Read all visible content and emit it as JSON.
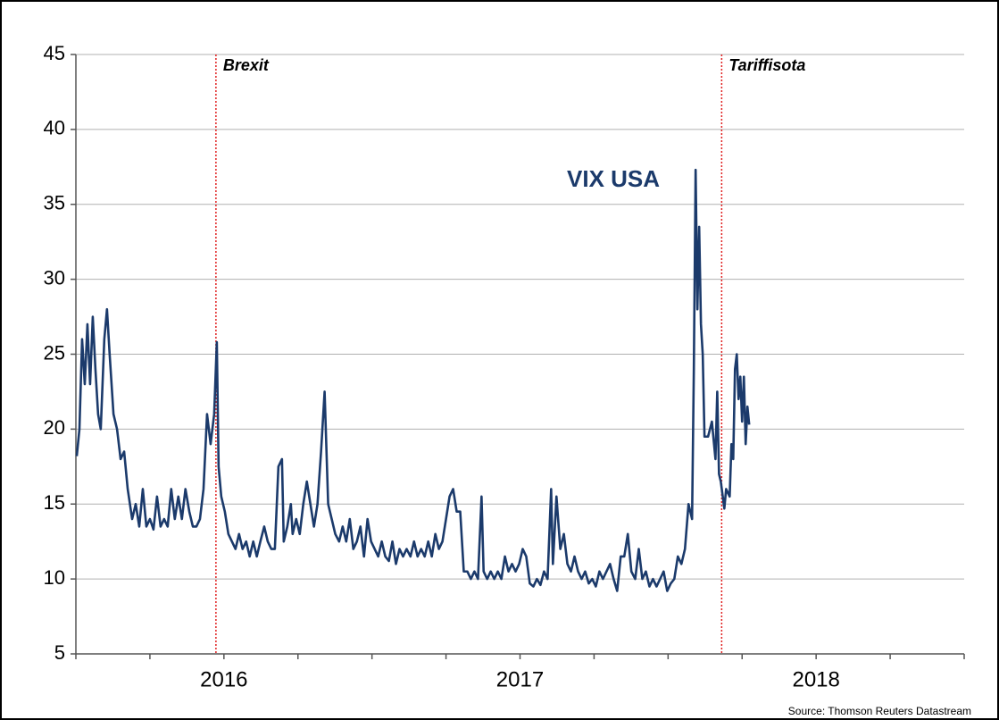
{
  "chart_data": {
    "type": "line",
    "source": "Source: Thomson Reuters Datastream",
    "xlim": [
      2016,
      2019
    ],
    "xticks": [
      2016,
      2016.25,
      2016.5,
      2016.75,
      2017,
      2017.25,
      2017.5,
      2017.75,
      2018,
      2018.25,
      2018.5,
      2018.75,
      2019
    ],
    "xlabels": [
      {
        "value": 2016.5,
        "label": "2016"
      },
      {
        "value": 2017.5,
        "label": "2017"
      },
      {
        "value": 2018.5,
        "label": "2018"
      }
    ],
    "ylim": [
      5,
      45
    ],
    "yticks": [
      5,
      10,
      15,
      20,
      25,
      30,
      35,
      40,
      45
    ],
    "grid": true,
    "annotations": [
      {
        "label": "Brexit",
        "x": 2016.473,
        "color": "#e02020"
      },
      {
        "label": "Tariffisota",
        "x": 2018.181,
        "color": "#e02020"
      }
    ],
    "x": [
      2016.003,
      2016.012,
      2016.021,
      2016.03,
      2016.039,
      2016.048,
      2016.057,
      2016.066,
      2016.075,
      2016.084,
      2016.096,
      2016.105,
      2016.114,
      2016.127,
      2016.139,
      2016.151,
      2016.163,
      2016.175,
      2016.19,
      2016.202,
      2016.214,
      2016.226,
      2016.238,
      2016.25,
      2016.262,
      2016.274,
      2016.286,
      2016.298,
      2016.31,
      2016.322,
      2016.334,
      2016.346,
      2016.358,
      2016.37,
      2016.383,
      2016.395,
      2016.407,
      2016.419,
      2016.431,
      2016.443,
      2016.455,
      2016.467,
      2016.476,
      2016.482,
      2016.491,
      2016.503,
      2016.515,
      2016.527,
      2016.539,
      2016.551,
      2016.563,
      2016.575,
      2016.587,
      2016.599,
      2016.611,
      2016.623,
      2016.636,
      2016.648,
      2016.66,
      2016.672,
      2016.684,
      2016.696,
      2016.702,
      2016.714,
      2016.726,
      2016.732,
      2016.744,
      2016.756,
      2016.768,
      2016.78,
      2016.792,
      2016.804,
      2016.816,
      2016.828,
      2016.84,
      2016.852,
      2016.864,
      2016.876,
      2016.889,
      2016.901,
      2016.913,
      2016.925,
      2016.937,
      2016.949,
      2016.961,
      2016.973,
      2016.985,
      2016.997,
      2017.009,
      2017.021,
      2017.033,
      2017.045,
      2017.057,
      2017.069,
      2017.081,
      2017.093,
      2017.105,
      2017.117,
      2017.13,
      2017.142,
      2017.154,
      2017.166,
      2017.178,
      2017.19,
      2017.202,
      2017.214,
      2017.226,
      2017.238,
      2017.25,
      2017.262,
      2017.274,
      2017.286,
      2017.298,
      2017.31,
      2017.322,
      2017.334,
      2017.346,
      2017.358,
      2017.37,
      2017.377,
      2017.389,
      2017.401,
      2017.413,
      2017.425,
      2017.437,
      2017.449,
      2017.461,
      2017.473,
      2017.485,
      2017.497,
      2017.509,
      2017.521,
      2017.533,
      2017.545,
      2017.557,
      2017.569,
      2017.581,
      2017.593,
      2017.605,
      2017.611,
      2017.623,
      2017.636,
      2017.648,
      2017.66,
      2017.672,
      2017.684,
      2017.696,
      2017.708,
      2017.72,
      2017.732,
      2017.744,
      2017.756,
      2017.768,
      2017.78,
      2017.792,
      2017.804,
      2017.816,
      2017.828,
      2017.84,
      2017.852,
      2017.864,
      2017.876,
      2017.889,
      2017.901,
      2017.913,
      2017.925,
      2017.937,
      2017.949,
      2017.961,
      2017.973,
      2017.985,
      2017.997,
      2018.009,
      2018.021,
      2018.033,
      2018.045,
      2018.057,
      2018.069,
      2018.081,
      2018.087,
      2018.093,
      2018.099,
      2018.105,
      2018.111,
      2018.117,
      2018.123,
      2018.135,
      2018.148,
      2018.16,
      2018.166,
      2018.172,
      2018.178,
      2018.19,
      2018.196,
      2018.208,
      2018.214,
      2018.22,
      2018.226,
      2018.232,
      2018.238,
      2018.244,
      2018.25,
      2018.256,
      2018.262,
      2018.268,
      2018.274
    ],
    "series": [
      {
        "name": "VIX USA",
        "color": "#1b3a6b",
        "values": [
          18.2,
          20,
          26,
          23,
          27,
          23,
          27.5,
          24,
          21,
          20,
          26,
          28,
          25,
          21,
          20,
          18,
          18.5,
          16,
          14,
          15,
          13.5,
          16,
          13.5,
          14,
          13.3,
          15.5,
          13.5,
          14,
          13.5,
          16,
          14,
          15.5,
          14,
          16,
          14.5,
          13.5,
          13.5,
          14,
          16,
          21,
          19,
          21,
          25.8,
          17.5,
          15.5,
          14.5,
          13,
          12.5,
          12,
          13,
          12,
          12.5,
          11.5,
          12.5,
          11.5,
          12.5,
          13.5,
          12.5,
          12,
          12,
          17.5,
          18,
          12.5,
          13.5,
          15,
          13,
          14,
          13,
          15,
          16.5,
          15,
          13.5,
          15,
          18.5,
          22.5,
          15,
          14,
          13,
          12.5,
          13.5,
          12.5,
          14,
          12,
          12.5,
          13.5,
          11.5,
          14,
          12.5,
          12,
          11.5,
          12.5,
          11.5,
          11.2,
          12.5,
          11,
          12,
          11.5,
          12,
          11.5,
          12.5,
          11.5,
          12,
          11.5,
          12.5,
          11.5,
          13,
          12,
          12.5,
          14,
          15.5,
          16,
          14.5,
          14.5,
          10.5,
          10.5,
          10,
          10.5,
          10,
          15.5,
          10.5,
          10,
          10.5,
          10,
          10.5,
          10,
          11.5,
          10.5,
          11,
          10.5,
          11,
          12,
          11.5,
          9.7,
          9.5,
          10,
          9.6,
          10.5,
          10,
          16,
          11,
          15.5,
          12,
          13,
          11,
          10.5,
          11.5,
          10.5,
          10,
          10.5,
          9.7,
          10,
          9.5,
          10.5,
          10,
          10.5,
          11,
          10,
          9.2,
          11.5,
          11.5,
          13,
          10.5,
          10,
          12,
          10,
          10.5,
          9.5,
          10,
          9.5,
          10,
          10.5,
          9.2,
          9.7,
          10,
          11.5,
          11,
          12,
          15,
          14,
          24,
          37.3,
          28,
          33.5,
          27,
          25,
          19.5,
          19.5,
          20.5,
          18,
          22.5,
          17,
          16.5,
          14.7,
          16,
          15.5,
          19,
          18,
          24,
          25,
          22,
          23.5,
          20.5,
          23.5,
          19,
          21.5,
          20.3
        ]
      }
    ]
  }
}
